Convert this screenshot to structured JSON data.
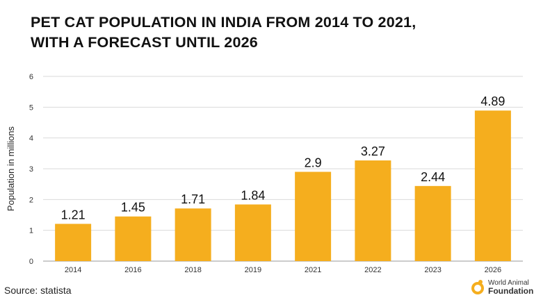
{
  "chart_data": {
    "type": "bar",
    "title": "PET CAT POPULATION IN INDIA FROM 2014 TO 2021, WITH A FORECAST UNTIL 2026",
    "categories": [
      "2014",
      "2016",
      "2018",
      "2019",
      "2021",
      "2022",
      "2023",
      "2026"
    ],
    "values": [
      1.21,
      1.45,
      1.71,
      1.84,
      2.9,
      3.27,
      2.44,
      4.89
    ],
    "data_labels": [
      "1.21",
      "1.45",
      "1.71",
      "1.84",
      "2.9",
      "3.27",
      "2.44",
      "4.89"
    ],
    "xlabel": "",
    "ylabel": "Population in millions",
    "ylim": [
      0,
      6
    ],
    "yticks": [
      "0",
      "1",
      "2",
      "3",
      "4",
      "5",
      "6"
    ],
    "grid": true,
    "bar_color": "#F5AE1E"
  },
  "title_line1": "PET CAT POPULATION IN INDIA FROM 2014 TO 2021,",
  "title_line2": "WITH A FORECAST UNTIL 2026",
  "source": "Source: statista",
  "logo": {
    "line1": "World Animal",
    "line2": "Foundation"
  }
}
